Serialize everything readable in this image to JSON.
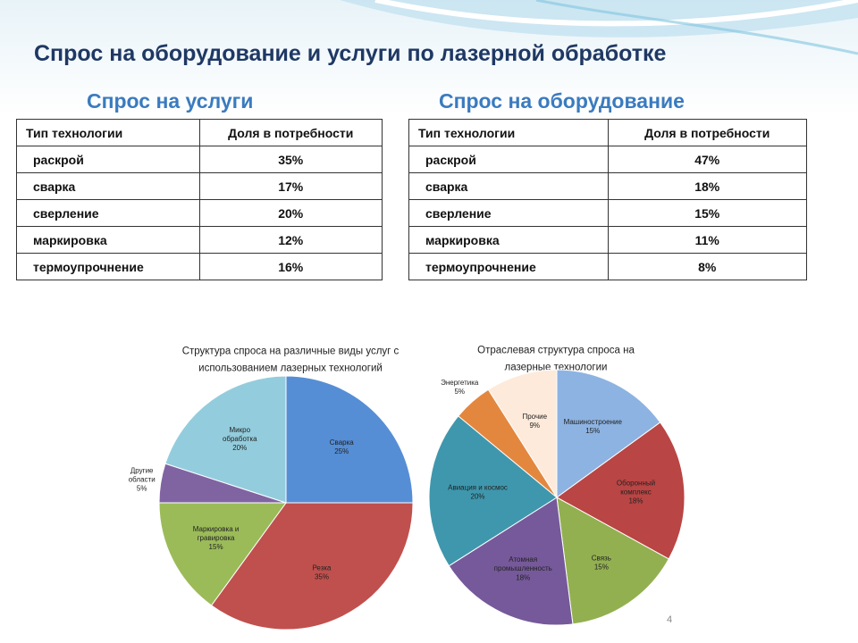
{
  "title": "Спрос на оборудование и услуги по лазерной обработке",
  "tables": [
    {
      "caption": "Спрос на услуги",
      "header": [
        "Тип технологии",
        "Доля в потребности"
      ],
      "rows": [
        [
          "раскрой",
          "35%"
        ],
        [
          "сварка",
          "17%"
        ],
        [
          "сверление",
          "20%"
        ],
        [
          "маркировка",
          "12%"
        ],
        [
          "термоупрочнение",
          "16%"
        ]
      ]
    },
    {
      "caption": "Спрос на оборудование",
      "header": [
        "Тип технологии",
        "Доля в потребности"
      ],
      "rows": [
        [
          "раскрой",
          "47%"
        ],
        [
          "сварка",
          "18%"
        ],
        [
          "сверление",
          "15%"
        ],
        [
          "маркировка",
          "11%"
        ],
        [
          "термоупрочнение",
          "8%"
        ]
      ]
    }
  ],
  "chart_data": [
    {
      "type": "pie",
      "title": "Структура спроса на различные виды услуг с\nиспользованием лазерных технологий",
      "categories": [
        "Сварка",
        "Резка",
        "Маркировка и\nгравировка",
        "Другие\nобласти",
        "Микро\nобработка"
      ],
      "values": [
        25,
        35,
        15,
        5,
        20
      ],
      "value_labels": [
        "25%",
        "35%",
        "15%",
        "5%",
        "20%"
      ],
      "colors": [
        "#558ed5",
        "#c0504d",
        "#9bbb59",
        "#8064a2",
        "#93cddd"
      ]
    },
    {
      "type": "pie",
      "title": "Отраслевая структура спроса на\nлазерные технологии",
      "categories": [
        "Машиностроение",
        "Оборонный\nкомплекс",
        "Связь",
        "Атомная\nпромышленность",
        "Авиация и космос",
        "Энергетика",
        "Прочие"
      ],
      "values": [
        15,
        18,
        15,
        18,
        20,
        5,
        9
      ],
      "value_labels": [
        "15%",
        "18%",
        "15%",
        "18%",
        "20%",
        "5%",
        "9%"
      ],
      "colors": [
        "#8db3e2",
        "#b94544",
        "#92b050",
        "#76599a",
        "#3f97ad",
        "#e3873f",
        "#fdeada"
      ]
    }
  ],
  "page_number": "4"
}
